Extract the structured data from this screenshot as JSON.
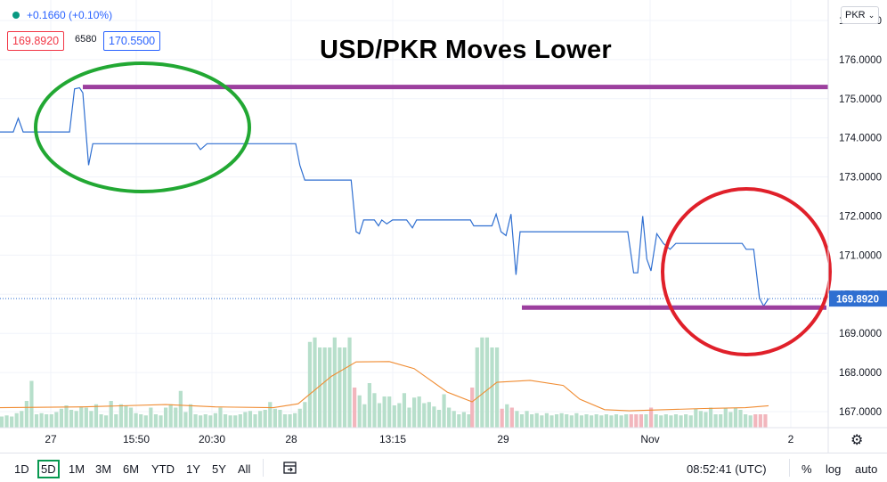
{
  "header": {
    "change_text": "+0.1660 (+0.10%)",
    "bid": "169.8920",
    "spread": "6580",
    "ask": "170.5500",
    "currency_button": "PKR"
  },
  "annotation": {
    "title": "USD/PKR Moves Lower",
    "resistance_level": 175.3,
    "support_level": 169.66,
    "line_color": "#9c3f9e",
    "ellipse_green_color": "#22a833",
    "ellipse_red_color": "#e0202a"
  },
  "last_price_label": "169.8920",
  "bottom": {
    "timeframes": [
      "1D",
      "5D",
      "1M",
      "3M",
      "6M",
      "YTD",
      "1Y",
      "5Y",
      "All"
    ],
    "active_timeframe": "5D",
    "clock": "08:52:41 (UTC)",
    "options": [
      "%",
      "log",
      "auto"
    ]
  },
  "chart_data": {
    "type": "line",
    "title": "USD/PKR Moves Lower",
    "xlabel": "",
    "ylabel": "",
    "y_ticks": [
      "167.0000",
      "168.0000",
      "169.0000",
      "170.0000",
      "171.0000",
      "172.0000",
      "173.0000",
      "174.0000",
      "175.0000",
      "176.0000",
      "177.0000"
    ],
    "ylim": [
      166.8,
      177.6
    ],
    "x_tick_labels": [
      "27",
      "15:50",
      "20:30",
      "28",
      "13:15",
      "29",
      "Nov",
      "2"
    ],
    "x_range": [
      0,
      1000
    ],
    "grid": true,
    "series": [
      {
        "color": "#2f6fd1",
        "points": [
          [
            0,
            174.15
          ],
          [
            16,
            174.15
          ],
          [
            22,
            174.5
          ],
          [
            28,
            174.15
          ],
          [
            84,
            174.15
          ],
          [
            90,
            175.25
          ],
          [
            96,
            175.28
          ],
          [
            100,
            175.15
          ],
          [
            107,
            173.3
          ],
          [
            112,
            173.85
          ],
          [
            237,
            173.85
          ],
          [
            242,
            173.7
          ],
          [
            250,
            173.85
          ],
          [
            357,
            173.85
          ],
          [
            362,
            173.3
          ],
          [
            368,
            172.92
          ],
          [
            424,
            172.92
          ],
          [
            430,
            171.6
          ],
          [
            434,
            171.55
          ],
          [
            439,
            171.9
          ],
          [
            452,
            171.9
          ],
          [
            457,
            171.75
          ],
          [
            461,
            171.9
          ],
          [
            467,
            171.8
          ],
          [
            474,
            171.9
          ],
          [
            491,
            171.9
          ],
          [
            498,
            171.7
          ],
          [
            503,
            171.9
          ],
          [
            568,
            171.9
          ],
          [
            572,
            171.75
          ],
          [
            594,
            171.75
          ],
          [
            599,
            172.05
          ],
          [
            605,
            171.6
          ],
          [
            611,
            171.5
          ],
          [
            617,
            172.05
          ],
          [
            623,
            170.5
          ],
          [
            628,
            171.6
          ],
          [
            758,
            171.6
          ],
          [
            765,
            170.55
          ],
          [
            770,
            170.55
          ],
          [
            776,
            172.0
          ],
          [
            781,
            170.9
          ],
          [
            786,
            170.6
          ],
          [
            793,
            171.55
          ],
          [
            801,
            171.3
          ],
          [
            809,
            171.15
          ],
          [
            816,
            171.3
          ],
          [
            896,
            171.3
          ],
          [
            901,
            171.15
          ],
          [
            910,
            171.15
          ],
          [
            917,
            169.9
          ],
          [
            922,
            169.7
          ],
          [
            928,
            169.89
          ]
        ]
      },
      {
        "color": "#f08c32",
        "points": [
          [
            0,
            167.1
          ],
          [
            100,
            167.12
          ],
          [
            200,
            167.18
          ],
          [
            260,
            167.12
          ],
          [
            330,
            167.1
          ],
          [
            360,
            167.2
          ],
          [
            400,
            167.9
          ],
          [
            430,
            168.27
          ],
          [
            470,
            168.28
          ],
          [
            500,
            168.1
          ],
          [
            540,
            167.5
          ],
          [
            570,
            167.25
          ],
          [
            600,
            167.75
          ],
          [
            640,
            167.8
          ],
          [
            680,
            167.67
          ],
          [
            700,
            167.32
          ],
          [
            730,
            167.05
          ],
          [
            760,
            167.02
          ],
          [
            850,
            167.08
          ],
          [
            900,
            167.1
          ],
          [
            928,
            167.15
          ]
        ]
      }
    ],
    "volume": {
      "green_color": "#b7dfcb",
      "red_color": "#f2b6bd",
      "bars": [
        [
          2,
          0.1,
          "g"
        ],
        [
          8,
          0.11,
          "g"
        ],
        [
          14,
          0.1,
          "g"
        ],
        [
          20,
          0.13,
          "g"
        ],
        [
          26,
          0.15,
          "g"
        ],
        [
          32,
          0.24,
          "g"
        ],
        [
          38,
          0.42,
          "g"
        ],
        [
          44,
          0.12,
          "g"
        ],
        [
          50,
          0.13,
          "g"
        ],
        [
          56,
          0.12,
          "g"
        ],
        [
          62,
          0.12,
          "g"
        ],
        [
          68,
          0.14,
          "g"
        ],
        [
          74,
          0.17,
          "g"
        ],
        [
          80,
          0.2,
          "g"
        ],
        [
          86,
          0.16,
          "g"
        ],
        [
          92,
          0.15,
          "g"
        ],
        [
          98,
          0.19,
          "g"
        ],
        [
          104,
          0.18,
          "g"
        ],
        [
          110,
          0.15,
          "g"
        ],
        [
          116,
          0.21,
          "g"
        ],
        [
          122,
          0.12,
          "g"
        ],
        [
          128,
          0.11,
          "g"
        ],
        [
          134,
          0.24,
          "g"
        ],
        [
          140,
          0.12,
          "g"
        ],
        [
          146,
          0.21,
          "g"
        ],
        [
          152,
          0.2,
          "g"
        ],
        [
          158,
          0.18,
          "g"
        ],
        [
          164,
          0.13,
          "g"
        ],
        [
          170,
          0.12,
          "g"
        ],
        [
          176,
          0.11,
          "g"
        ],
        [
          182,
          0.18,
          "g"
        ],
        [
          188,
          0.12,
          "g"
        ],
        [
          194,
          0.11,
          "g"
        ],
        [
          200,
          0.18,
          "g"
        ],
        [
          206,
          0.21,
          "g"
        ],
        [
          212,
          0.18,
          "g"
        ],
        [
          218,
          0.33,
          "g"
        ],
        [
          224,
          0.14,
          "g"
        ],
        [
          230,
          0.21,
          "g"
        ],
        [
          236,
          0.12,
          "g"
        ],
        [
          242,
          0.11,
          "g"
        ],
        [
          248,
          0.12,
          "g"
        ],
        [
          254,
          0.11,
          "g"
        ],
        [
          260,
          0.13,
          "g"
        ],
        [
          266,
          0.18,
          "g"
        ],
        [
          272,
          0.12,
          "g"
        ],
        [
          278,
          0.11,
          "g"
        ],
        [
          284,
          0.11,
          "g"
        ],
        [
          290,
          0.12,
          "g"
        ],
        [
          296,
          0.14,
          "g"
        ],
        [
          302,
          0.15,
          "g"
        ],
        [
          308,
          0.12,
          "g"
        ],
        [
          314,
          0.15,
          "g"
        ],
        [
          320,
          0.16,
          "g"
        ],
        [
          326,
          0.23,
          "g"
        ],
        [
          332,
          0.17,
          "g"
        ],
        [
          338,
          0.16,
          "g"
        ],
        [
          344,
          0.12,
          "g"
        ],
        [
          350,
          0.12,
          "g"
        ],
        [
          356,
          0.13,
          "g"
        ],
        [
          362,
          0.17,
          "g"
        ],
        [
          368,
          0.23,
          "g"
        ],
        [
          374,
          0.77,
          "g"
        ],
        [
          380,
          0.81,
          "g"
        ],
        [
          386,
          0.72,
          "g"
        ],
        [
          392,
          0.72,
          "g"
        ],
        [
          398,
          0.72,
          "g"
        ],
        [
          404,
          0.81,
          "g"
        ],
        [
          410,
          0.72,
          "g"
        ],
        [
          416,
          0.72,
          "g"
        ],
        [
          422,
          0.81,
          "g"
        ],
        [
          428,
          0.36,
          "r"
        ],
        [
          434,
          0.29,
          "g"
        ],
        [
          440,
          0.21,
          "g"
        ],
        [
          446,
          0.4,
          "g"
        ],
        [
          452,
          0.31,
          "g"
        ],
        [
          458,
          0.22,
          "g"
        ],
        [
          464,
          0.28,
          "g"
        ],
        [
          470,
          0.28,
          "g"
        ],
        [
          476,
          0.2,
          "g"
        ],
        [
          482,
          0.22,
          "g"
        ],
        [
          488,
          0.31,
          "g"
        ],
        [
          494,
          0.18,
          "g"
        ],
        [
          500,
          0.27,
          "g"
        ],
        [
          506,
          0.28,
          "g"
        ],
        [
          512,
          0.22,
          "g"
        ],
        [
          518,
          0.23,
          "g"
        ],
        [
          524,
          0.19,
          "g"
        ],
        [
          530,
          0.16,
          "g"
        ],
        [
          536,
          0.3,
          "g"
        ],
        [
          542,
          0.18,
          "g"
        ],
        [
          548,
          0.15,
          "g"
        ],
        [
          554,
          0.12,
          "g"
        ],
        [
          560,
          0.14,
          "g"
        ],
        [
          566,
          0.12,
          "g"
        ],
        [
          570,
          0.36,
          "r"
        ],
        [
          576,
          0.72,
          "g"
        ],
        [
          582,
          0.81,
          "g"
        ],
        [
          588,
          0.81,
          "g"
        ],
        [
          594,
          0.72,
          "g"
        ],
        [
          600,
          0.72,
          "g"
        ],
        [
          606,
          0.17,
          "r"
        ],
        [
          612,
          0.21,
          "g"
        ],
        [
          618,
          0.18,
          "r"
        ],
        [
          624,
          0.15,
          "g"
        ],
        [
          630,
          0.12,
          "g"
        ],
        [
          636,
          0.15,
          "g"
        ],
        [
          642,
          0.12,
          "g"
        ],
        [
          648,
          0.13,
          "g"
        ],
        [
          654,
          0.11,
          "g"
        ],
        [
          660,
          0.13,
          "g"
        ],
        [
          666,
          0.11,
          "g"
        ],
        [
          672,
          0.12,
          "g"
        ],
        [
          678,
          0.13,
          "g"
        ],
        [
          684,
          0.12,
          "g"
        ],
        [
          690,
          0.11,
          "g"
        ],
        [
          696,
          0.13,
          "g"
        ],
        [
          702,
          0.11,
          "g"
        ],
        [
          708,
          0.12,
          "g"
        ],
        [
          714,
          0.11,
          "g"
        ],
        [
          720,
          0.12,
          "g"
        ],
        [
          726,
          0.11,
          "g"
        ],
        [
          732,
          0.12,
          "g"
        ],
        [
          738,
          0.11,
          "g"
        ],
        [
          744,
          0.12,
          "g"
        ],
        [
          750,
          0.11,
          "g"
        ],
        [
          756,
          0.12,
          "g"
        ],
        [
          762,
          0.12,
          "r"
        ],
        [
          768,
          0.12,
          "r"
        ],
        [
          774,
          0.12,
          "r"
        ],
        [
          780,
          0.12,
          "g"
        ],
        [
          786,
          0.18,
          "r"
        ],
        [
          792,
          0.12,
          "g"
        ],
        [
          798,
          0.11,
          "g"
        ],
        [
          804,
          0.12,
          "g"
        ],
        [
          810,
          0.11,
          "g"
        ],
        [
          816,
          0.12,
          "g"
        ],
        [
          822,
          0.11,
          "g"
        ],
        [
          828,
          0.12,
          "g"
        ],
        [
          834,
          0.11,
          "g"
        ],
        [
          840,
          0.17,
          "g"
        ],
        [
          846,
          0.15,
          "g"
        ],
        [
          852,
          0.14,
          "g"
        ],
        [
          858,
          0.18,
          "g"
        ],
        [
          864,
          0.12,
          "g"
        ],
        [
          870,
          0.12,
          "g"
        ],
        [
          876,
          0.18,
          "g"
        ],
        [
          882,
          0.14,
          "g"
        ],
        [
          888,
          0.18,
          "g"
        ],
        [
          894,
          0.16,
          "g"
        ],
        [
          900,
          0.12,
          "g"
        ],
        [
          906,
          0.11,
          "g"
        ],
        [
          912,
          0.12,
          "r"
        ],
        [
          918,
          0.12,
          "r"
        ],
        [
          924,
          0.12,
          "r"
        ]
      ]
    }
  }
}
